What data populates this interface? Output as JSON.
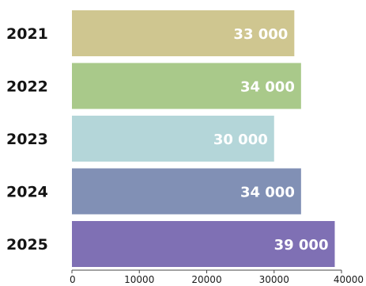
{
  "chart_data": {
    "type": "bar",
    "orientation": "horizontal",
    "categories": [
      "2021",
      "2022",
      "2023",
      "2024",
      "2025"
    ],
    "values": [
      33000,
      34000,
      30000,
      34000,
      39000
    ],
    "value_labels": [
      "33 000",
      "34 000",
      "30 000",
      "34 000",
      "39 000"
    ],
    "bar_colors": [
      "#cfc690",
      "#a9c98a",
      "#b4d6d9",
      "#8190b5",
      "#7f70b4"
    ],
    "xlim": [
      0,
      40000
    ],
    "x_ticks": [
      0,
      10000,
      20000,
      30000,
      40000
    ],
    "x_tick_labels": [
      "0",
      "10000",
      "20000",
      "30000",
      "40000"
    ],
    "title": "",
    "xlabel": "",
    "ylabel": "",
    "grid": false,
    "legend": "none"
  }
}
